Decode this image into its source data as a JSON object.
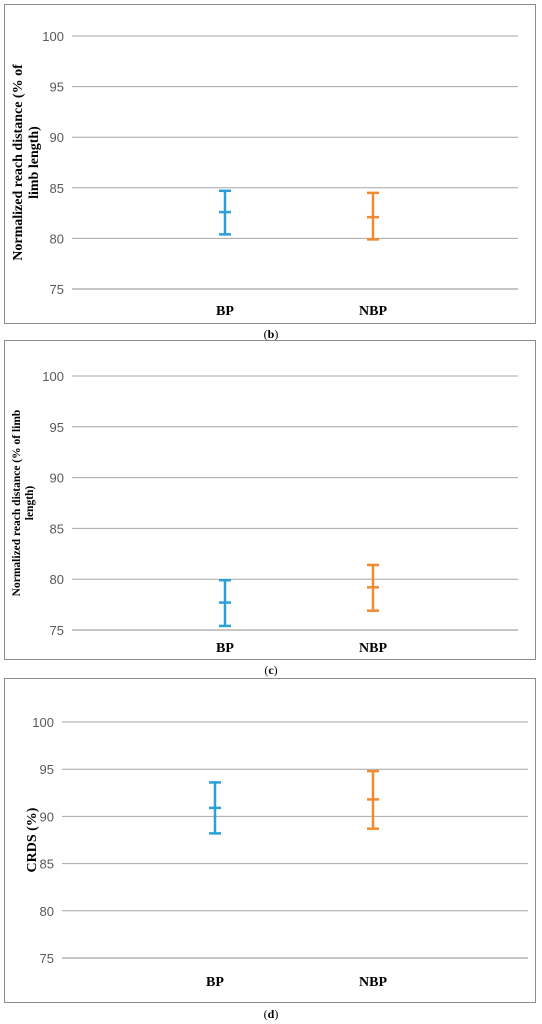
{
  "chart_data": [
    {
      "type": "error-bar",
      "panel": "b",
      "ylabel": "Normalized reach distance (% of limb length)",
      "ylabel_lines": [
        "Normalized reach distance (% of",
        "limb length)"
      ],
      "ylim": [
        75,
        100
      ],
      "yticks": [
        75,
        80,
        85,
        90,
        95,
        100
      ],
      "grid": true,
      "categories": [
        "BP",
        "NBP"
      ],
      "series": [
        {
          "category": "BP",
          "mean": 82.6,
          "low": 80.4,
          "high": 84.7,
          "color": "#2a9fd8"
        },
        {
          "category": "NBP",
          "mean": 82.1,
          "low": 79.9,
          "high": 84.5,
          "color": "#f28a30"
        }
      ]
    },
    {
      "type": "error-bar",
      "panel": "c",
      "ylabel": "Normalized reach distance (% of limb length)",
      "ylabel_lines": [
        "Normalized reach distance (% of limb",
        "length)"
      ],
      "ylim": [
        75,
        100
      ],
      "yticks": [
        75,
        80,
        85,
        90,
        95,
        100
      ],
      "grid": true,
      "categories": [
        "BP",
        "NBP"
      ],
      "series": [
        {
          "category": "BP",
          "mean": 77.7,
          "low": 75.4,
          "high": 79.9,
          "color": "#2a9fd8"
        },
        {
          "category": "NBP",
          "mean": 79.2,
          "low": 76.9,
          "high": 81.4,
          "color": "#f28a30"
        }
      ]
    },
    {
      "type": "error-bar",
      "panel": "d",
      "ylabel": "CRDS (%)",
      "ylabel_lines": [
        "CRDS (%)"
      ],
      "ylim": [
        75,
        100
      ],
      "yticks": [
        75,
        80,
        85,
        90,
        95,
        100
      ],
      "grid": true,
      "categories": [
        "BP",
        "NBP"
      ],
      "series": [
        {
          "category": "BP",
          "mean": 90.9,
          "low": 88.2,
          "high": 93.6,
          "color": "#2a9fd8"
        },
        {
          "category": "NBP",
          "mean": 91.8,
          "low": 88.7,
          "high": 94.8,
          "color": "#f28a30"
        }
      ]
    }
  ],
  "captions": [
    "(b)",
    "(c)",
    "(d)"
  ],
  "caption_parts": [
    {
      "open": "(",
      "letter": "b",
      "close": ")"
    },
    {
      "open": "(",
      "letter": "c",
      "close": ")"
    },
    {
      "open": "(",
      "letter": "d",
      "close": ")"
    }
  ],
  "colors": {
    "grid": "#a6a6a6",
    "axis": "#8c8c8c",
    "border": "#8c8c8c"
  }
}
